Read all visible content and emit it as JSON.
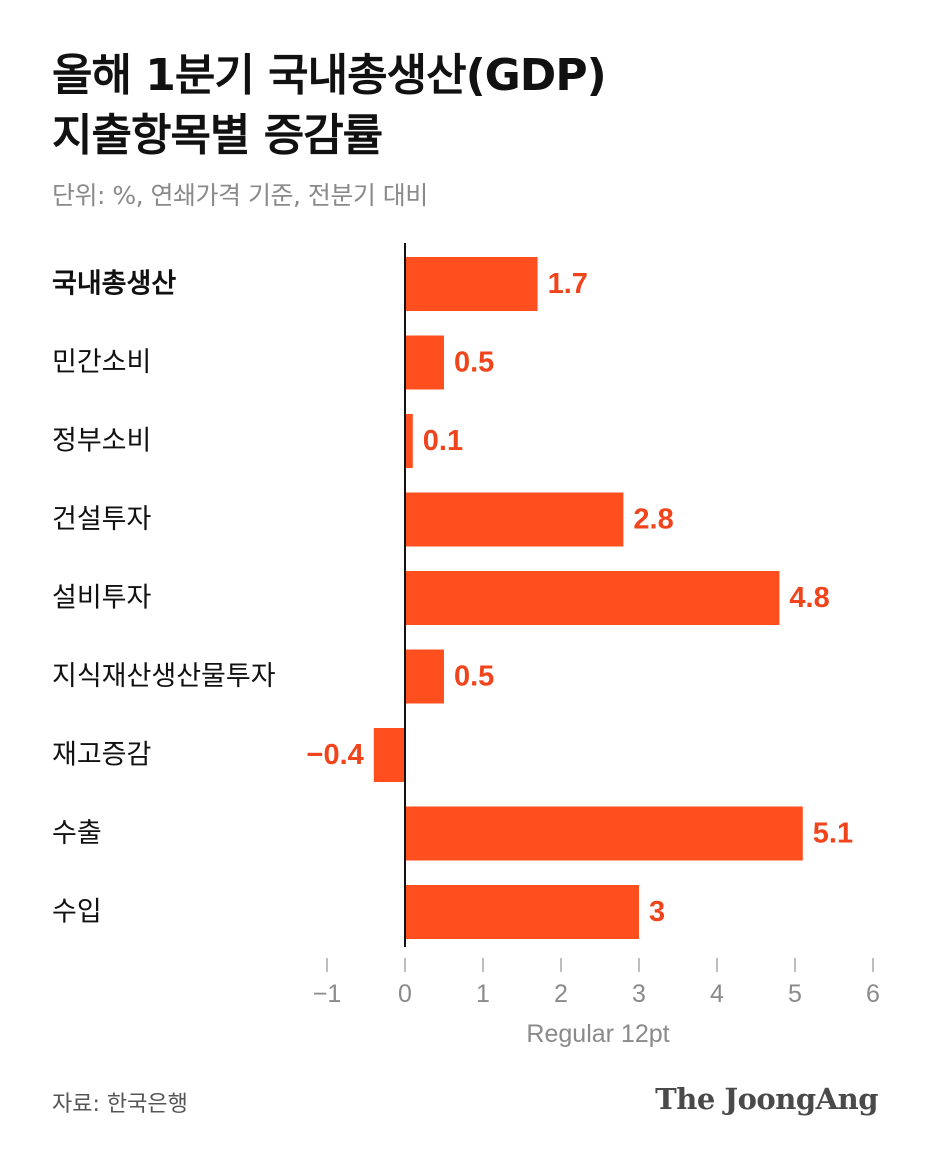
{
  "header": {
    "title_line1": "올해 1분기 국내총생산(GDP)",
    "title_line2": "지출항목별 증감률",
    "subtitle": "단위: %, 연쇄가격 기준, 전분기 대비"
  },
  "chart_data": {
    "type": "bar",
    "orientation": "horizontal",
    "categories": [
      "국내총생산",
      "민간소비",
      "정부소비",
      "건설투자",
      "설비투자",
      "지식재산생산물투자",
      "재고증감",
      "수출",
      "수입"
    ],
    "values": [
      1.7,
      0.5,
      0.1,
      2.8,
      4.8,
      0.5,
      -0.4,
      5.1,
      3
    ],
    "value_labels": [
      "1.7",
      "0.5",
      "0.1",
      "2.8",
      "4.8",
      "0.5",
      "−0.4",
      "5.1",
      "3"
    ],
    "bold_categories": [
      "국내총생산"
    ],
    "xlim": [
      -1,
      6
    ],
    "xticks": [
      -1,
      0,
      1,
      2,
      3,
      4,
      5,
      6
    ],
    "xtick_labels": [
      "−1",
      "0",
      "1",
      "2",
      "3",
      "4",
      "5",
      "6"
    ],
    "xlabel": "Regular 12pt",
    "bar_color": "#ff4f1f",
    "value_label_color": "#f0441c",
    "grid": false
  },
  "footer": {
    "source": "자료: 한국은행",
    "logo": "The JoongAng"
  }
}
